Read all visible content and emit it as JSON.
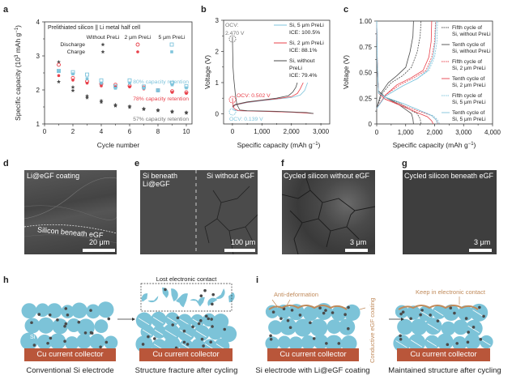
{
  "panels": {
    "a": "a",
    "b": "b",
    "c": "c",
    "d": "d",
    "e": "e",
    "f": "f",
    "g": "g",
    "h": "h",
    "i": "i"
  },
  "colors": {
    "black_series": "#4a4a4a",
    "red_series": "#e8404a",
    "blue_series": "#7fc4dc",
    "si_particle": "#7cc3d8",
    "carbon": "#4a4a4a",
    "cu_collector": "#b9563a",
    "coating": "#c08a5a"
  },
  "chart_data": [
    {
      "id": "a",
      "type": "scatter",
      "title": "Prelithiated silicon || Li metal half cell",
      "xlabel": "Cycle number",
      "ylabel": "Specific capacity (10^3 mAh g^-1)",
      "xlim": [
        0,
        10
      ],
      "ylim": [
        1,
        4
      ],
      "xticks": [
        "0",
        "2",
        "4",
        "6",
        "8",
        "10"
      ],
      "yticks": [
        "1",
        "2",
        "3",
        "4"
      ],
      "legend": {
        "columns": [
          "Without PreLi",
          "2 μm PreLi",
          "5 μm PreLi"
        ],
        "rows": [
          "Discharge",
          "Charge"
        ]
      },
      "x": [
        1,
        2,
        3,
        4,
        5,
        6,
        7,
        8,
        9,
        10
      ],
      "series": [
        {
          "name": "Without PreLi Discharge",
          "color": "#4a4a4a",
          "marker": "star-open",
          "values": [
            2.82,
            2.08,
            1.82,
            1.68,
            1.56,
            1.52,
            1.45,
            1.41,
            1.37,
            1.34
          ]
        },
        {
          "name": "Without PreLi Charge",
          "color": "#4a4a4a",
          "marker": "star",
          "values": [
            2.24,
            1.98,
            1.77,
            1.64,
            1.53,
            1.49,
            1.43,
            1.39,
            1.35,
            1.32
          ]
        },
        {
          "name": "2 μm PreLi Discharge",
          "color": "#e8404a",
          "marker": "circle-open",
          "values": [
            2.74,
            2.35,
            2.25,
            2.18,
            2.15,
            2.12,
            2.07,
            1.99,
            1.96,
            1.93
          ]
        },
        {
          "name": "2 μm PreLi Charge",
          "color": "#e8404a",
          "marker": "circle",
          "values": [
            2.42,
            2.29,
            2.2,
            2.12,
            2.09,
            2.09,
            2.03,
            1.97,
            1.93,
            1.9
          ]
        },
        {
          "name": "5 μm PreLi Discharge",
          "color": "#7fc4dc",
          "marker": "square-open",
          "values": [
            2.56,
            2.52,
            2.45,
            2.28,
            2.1,
            2.28,
            2.1,
            1.99,
            2.21,
            2.11
          ]
        },
        {
          "name": "5 μm PreLi Charge",
          "color": "#7fc4dc",
          "marker": "square",
          "values": [
            2.55,
            2.47,
            2.33,
            2.2,
            2.05,
            2.2,
            2.05,
            1.98,
            2.15,
            2.06
          ]
        }
      ],
      "annotations": [
        {
          "text": "80% capacity retention",
          "color": "#7fc4dc"
        },
        {
          "text": "78% capacity retention",
          "color": "#e8404a"
        },
        {
          "text": "57% capacity retention",
          "color": "#777777"
        }
      ]
    },
    {
      "id": "b",
      "type": "line",
      "xlabel": "Specific capacity (mAh g^-1)",
      "ylabel": "Voltage (V)",
      "xlim": [
        -300,
        3300
      ],
      "ylim": [
        -0.3,
        3
      ],
      "xticks": [
        "0",
        "1,000",
        "2,000",
        "3,000"
      ],
      "yticks": [
        "0",
        "1",
        "2",
        "3"
      ],
      "series": [
        {
          "name": "Si, 5 μm PreLi",
          "ice": "ICE: 100.5%",
          "color": "#7fc4dc",
          "discharge": [
            [
              0,
              0.139
            ],
            [
              30,
              0.12
            ],
            [
              100,
              0.1
            ],
            [
              500,
              0.09
            ],
            [
              1500,
              0.07
            ],
            [
              2500,
              0.03
            ],
            [
              2750,
              0.01
            ]
          ],
          "charge": [
            [
              0,
              0.2
            ],
            [
              100,
              0.28
            ],
            [
              500,
              0.36
            ],
            [
              1000,
              0.42
            ],
            [
              1500,
              0.47
            ],
            [
              2000,
              0.52
            ],
            [
              2300,
              0.6
            ],
            [
              2450,
              0.75
            ],
            [
              2550,
              1.0
            ]
          ]
        },
        {
          "name": "Si, 2 μm PreLi",
          "ice": "ICE: 88.1%",
          "color": "#e8404a",
          "discharge": [
            [
              0,
              0.502
            ],
            [
              20,
              0.3
            ],
            [
              60,
              0.16
            ],
            [
              200,
              0.1
            ],
            [
              1000,
              0.08
            ],
            [
              2000,
              0.05
            ],
            [
              2600,
              0.02
            ],
            [
              2750,
              0.01
            ]
          ],
          "charge": [
            [
              0,
              0.22
            ],
            [
              100,
              0.29
            ],
            [
              500,
              0.37
            ],
            [
              1000,
              0.43
            ],
            [
              1500,
              0.48
            ],
            [
              2000,
              0.55
            ],
            [
              2200,
              0.65
            ],
            [
              2300,
              0.8
            ],
            [
              2400,
              1.0
            ]
          ]
        },
        {
          "name": "Si, without PreLi",
          "ice": "ICE: 79.4%",
          "color": "#4a4a4a",
          "discharge": [
            [
              0,
              2.47
            ],
            [
              20,
              1.5
            ],
            [
              50,
              1.1
            ],
            [
              100,
              0.6
            ],
            [
              150,
              0.3
            ],
            [
              250,
              0.12
            ],
            [
              500,
              0.1
            ],
            [
              1500,
              0.08
            ],
            [
              2500,
              0.04
            ],
            [
              2750,
              0.01
            ]
          ],
          "charge": [
            [
              0,
              0.24
            ],
            [
              100,
              0.3
            ],
            [
              500,
              0.38
            ],
            [
              1000,
              0.44
            ],
            [
              1500,
              0.5
            ],
            [
              1900,
              0.58
            ],
            [
              2050,
              0.7
            ],
            [
              2150,
              0.85
            ],
            [
              2200,
              1.0
            ]
          ]
        }
      ],
      "annotations": [
        {
          "text": "OCV:",
          "text2": "2.470 V",
          "color": "#777777"
        },
        {
          "text": "OCV: 0.502 V",
          "color": "#e8404a"
        },
        {
          "text": "OCV: 0.139 V",
          "color": "#7fc4dc"
        }
      ]
    },
    {
      "id": "c",
      "type": "line",
      "xlabel": "Specific capacity (mAh g^-1)",
      "ylabel": "Voltage (V)",
      "xlim": [
        0,
        4000
      ],
      "ylim": [
        0,
        1.0
      ],
      "xticks": [
        "0",
        "1,000",
        "2,000",
        "3,000",
        "4,000"
      ],
      "yticks": [
        "0",
        "0.25",
        "0.50",
        "0.75",
        "1.00"
      ],
      "series": [
        {
          "name": "Fifth cycle of Si, without PreLi",
          "color": "#4a4a4a",
          "dash": true,
          "discharge": [
            [
              0,
              1.0
            ],
            [
              20,
              0.6
            ],
            [
              60,
              0.32
            ],
            [
              300,
              0.26
            ],
            [
              800,
              0.2
            ],
            [
              1200,
              0.13
            ],
            [
              1400,
              0.1
            ],
            [
              1500,
              0.05
            ],
            [
              1530,
              0
            ]
          ],
          "charge": [
            [
              0,
              0.15
            ],
            [
              200,
              0.3
            ],
            [
              500,
              0.4
            ],
            [
              900,
              0.47
            ],
            [
              1200,
              0.55
            ],
            [
              1400,
              0.7
            ],
            [
              1500,
              0.85
            ],
            [
              1530,
              1.0
            ]
          ]
        },
        {
          "name": "Tenth cycle of Si, without PreLi",
          "color": "#4a4a4a",
          "dash": false,
          "discharge": [
            [
              0,
              1.0
            ],
            [
              20,
              0.6
            ],
            [
              60,
              0.32
            ],
            [
              300,
              0.26
            ],
            [
              700,
              0.2
            ],
            [
              1000,
              0.14
            ],
            [
              1200,
              0.1
            ],
            [
              1250,
              0.05
            ],
            [
              1270,
              0
            ]
          ],
          "charge": [
            [
              0,
              0.15
            ],
            [
              150,
              0.3
            ],
            [
              400,
              0.4
            ],
            [
              700,
              0.47
            ],
            [
              1000,
              0.55
            ],
            [
              1150,
              0.7
            ],
            [
              1250,
              0.85
            ],
            [
              1270,
              1.0
            ]
          ]
        },
        {
          "name": "Fifth cycle of Si, 2 μm PreLi",
          "color": "#e8404a",
          "dash": true,
          "discharge": [
            [
              0,
              1.0
            ],
            [
              20,
              0.6
            ],
            [
              60,
              0.3
            ],
            [
              300,
              0.24
            ],
            [
              900,
              0.18
            ],
            [
              1500,
              0.12
            ],
            [
              1900,
              0.08
            ],
            [
              2050,
              0.04
            ],
            [
              2120,
              0
            ]
          ],
          "charge": [
            [
              0,
              0.15
            ],
            [
              300,
              0.28
            ],
            [
              800,
              0.38
            ],
            [
              1300,
              0.45
            ],
            [
              1700,
              0.52
            ],
            [
              1900,
              0.65
            ],
            [
              2000,
              0.8
            ],
            [
              2030,
              1.0
            ]
          ]
        },
        {
          "name": "Tenth cycle of Si, 2 μm PreLi",
          "color": "#e8404a",
          "dash": false,
          "discharge": [
            [
              0,
              1.0
            ],
            [
              20,
              0.6
            ],
            [
              60,
              0.3
            ],
            [
              300,
              0.24
            ],
            [
              900,
              0.17
            ],
            [
              1400,
              0.11
            ],
            [
              1750,
              0.07
            ],
            [
              1900,
              0.03
            ],
            [
              1950,
              0
            ]
          ],
          "charge": [
            [
              0,
              0.15
            ],
            [
              300,
              0.28
            ],
            [
              700,
              0.38
            ],
            [
              1200,
              0.45
            ],
            [
              1600,
              0.52
            ],
            [
              1800,
              0.65
            ],
            [
              1880,
              0.8
            ],
            [
              1900,
              1.0
            ]
          ]
        },
        {
          "name": "Fifth cycle of Si, 5 μm PreLi",
          "color": "#7fc4dc",
          "dash": true,
          "discharge": [
            [
              0,
              1.0
            ],
            [
              20,
              0.6
            ],
            [
              60,
              0.3
            ],
            [
              300,
              0.26
            ],
            [
              900,
              0.2
            ],
            [
              1500,
              0.13
            ],
            [
              1950,
              0.08
            ],
            [
              2100,
              0.04
            ],
            [
              2170,
              0
            ]
          ],
          "charge": [
            [
              0,
              0.15
            ],
            [
              300,
              0.27
            ],
            [
              900,
              0.37
            ],
            [
              1400,
              0.44
            ],
            [
              1800,
              0.52
            ],
            [
              2000,
              0.65
            ],
            [
              2080,
              0.8
            ],
            [
              2100,
              1.0
            ]
          ]
        },
        {
          "name": "Tenth cycle of Si, 5 μm PreLi",
          "color": "#7fc4dc",
          "dash": false,
          "discharge": [
            [
              0,
              1.0
            ],
            [
              20,
              0.6
            ],
            [
              60,
              0.3
            ],
            [
              300,
              0.26
            ],
            [
              900,
              0.2
            ],
            [
              1500,
              0.13
            ],
            [
              1900,
              0.08
            ],
            [
              2050,
              0.04
            ],
            [
              2100,
              0
            ]
          ],
          "charge": [
            [
              0,
              0.15
            ],
            [
              300,
              0.27
            ],
            [
              900,
              0.37
            ],
            [
              1400,
              0.44
            ],
            [
              1750,
              0.52
            ],
            [
              1950,
              0.65
            ],
            [
              2020,
              0.8
            ],
            [
              2050,
              1.0
            ]
          ]
        }
      ]
    }
  ],
  "sem_images": {
    "d": {
      "label": "Li@eGF coating",
      "label2": "Silicon beneath eGF",
      "scale": "20 μm"
    },
    "e": {
      "label_left": "Si beneath",
      "label_left2": "Li@eGF",
      "label_right": "Si without eGF",
      "scale": "100 μm"
    },
    "f": {
      "label": "Cycled silicon without eGF",
      "scale": "3 μm"
    },
    "g": {
      "label": "Cycled silicon beneath eGF",
      "scale": "3 μm"
    }
  },
  "schematic_h": {
    "si_label": "Si",
    "lost_contact": "Lost electronic contact",
    "cu_label_1": "Cu current collector",
    "cu_label_2": "Cu current collector",
    "caption_1": "Conventional Si electrode",
    "caption_2": "Structure fracture after cycling"
  },
  "schematic_i": {
    "anti_deformation": "Anti-deformation",
    "coating_label": "Conductive eGF coating",
    "keep_contact": "Keep in electronic contact",
    "cu_label_1": "Cu current collector",
    "cu_label_2": "Cu current collector",
    "caption_1": "Si electrode with Li@eGF coating",
    "caption_2": "Maintained structure after cycling"
  }
}
